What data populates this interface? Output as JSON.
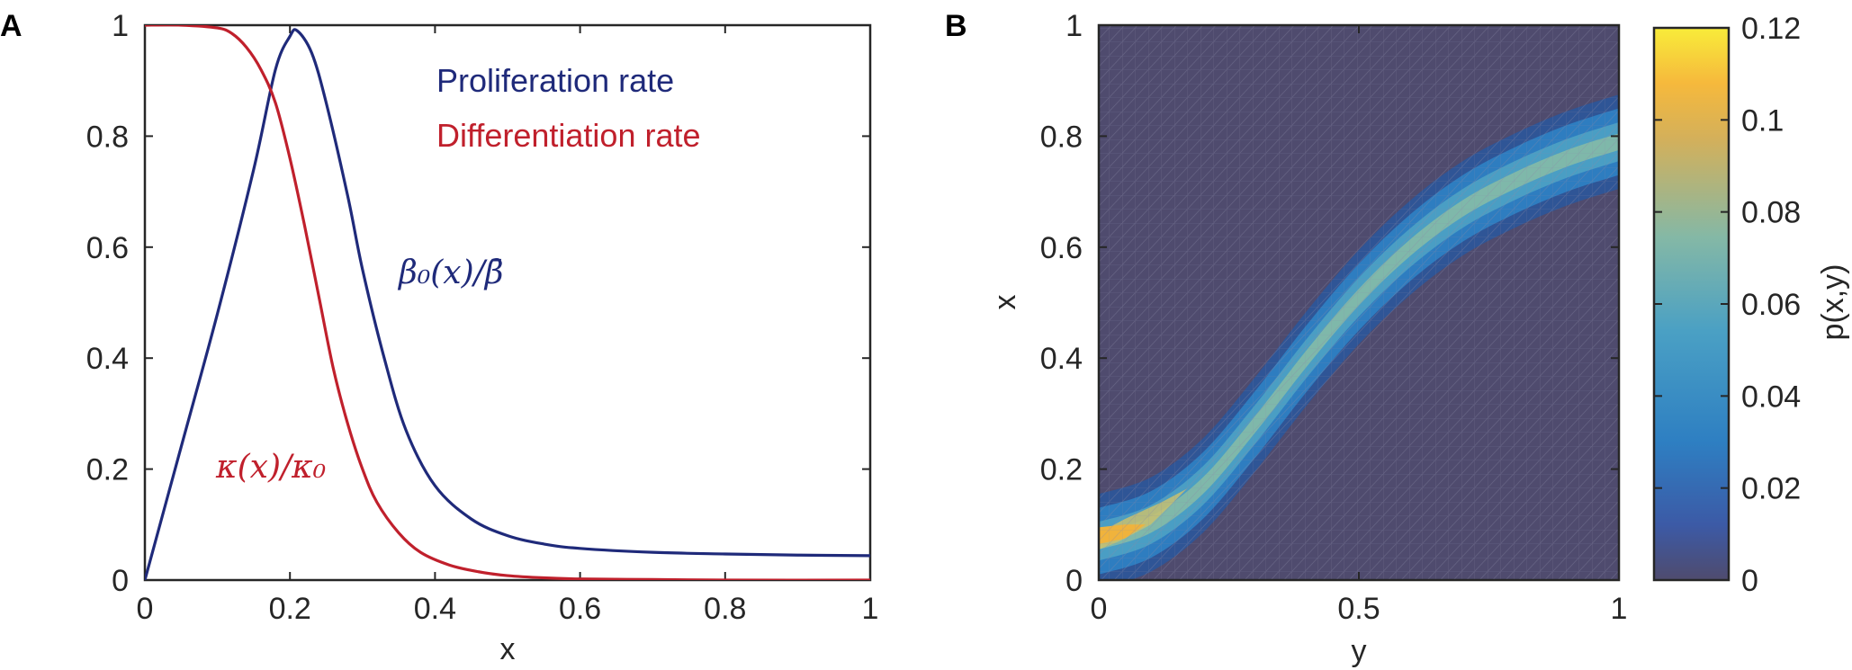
{
  "chart_data": [
    {
      "panel": "A",
      "type": "line",
      "xlabel": "x",
      "ylabel": "",
      "xlim": [
        0,
        1
      ],
      "ylim": [
        0,
        1
      ],
      "xticks": [
        "0",
        "0.2",
        "0.4",
        "0.6",
        "0.8",
        "1"
      ],
      "yticks": [
        "0",
        "0.2",
        "0.4",
        "0.6",
        "0.8",
        "1"
      ],
      "legend": [
        "Proliferation rate",
        "Differentiation rate"
      ],
      "annotations": {
        "beta": "β₀(x)/β̄",
        "kappa": "κ(x)/κ₀"
      },
      "series": [
        {
          "name": "Proliferation rate",
          "color": "#1f2a7a",
          "x": [
            0,
            0.05,
            0.1,
            0.15,
            0.18,
            0.2,
            0.21,
            0.23,
            0.25,
            0.28,
            0.3,
            0.33,
            0.36,
            0.4,
            0.45,
            0.5,
            0.55,
            0.6,
            0.7,
            0.8,
            0.9,
            1.0
          ],
          "y": [
            0,
            0.24,
            0.48,
            0.74,
            0.92,
            0.98,
            0.99,
            0.95,
            0.86,
            0.69,
            0.56,
            0.4,
            0.27,
            0.17,
            0.11,
            0.08,
            0.065,
            0.057,
            0.05,
            0.047,
            0.045,
            0.044
          ]
        },
        {
          "name": "Differentiation rate",
          "color": "#c0202c",
          "x": [
            0,
            0.05,
            0.1,
            0.12,
            0.14,
            0.16,
            0.18,
            0.2,
            0.22,
            0.24,
            0.26,
            0.28,
            0.3,
            0.32,
            0.35,
            0.38,
            0.42,
            0.46,
            0.5,
            0.55,
            0.6,
            0.7,
            0.8,
            1.0
          ],
          "y": [
            1,
            1,
            0.995,
            0.985,
            0.96,
            0.92,
            0.86,
            0.76,
            0.64,
            0.51,
            0.38,
            0.28,
            0.2,
            0.14,
            0.085,
            0.05,
            0.027,
            0.015,
            0.008,
            0.004,
            0.002,
            0.001,
            0.0,
            0.0
          ]
        }
      ]
    },
    {
      "panel": "B",
      "type": "heatmap",
      "xlabel": "y",
      "ylabel": "x",
      "xlim": [
        0,
        1
      ],
      "ylim": [
        0,
        1
      ],
      "xticks": [
        "0",
        "0.5",
        "1"
      ],
      "yticks": [
        "0",
        "0.2",
        "0.4",
        "0.6",
        "0.8",
        "1"
      ],
      "colorbar": {
        "label": "p(x,y)",
        "range": [
          0,
          0.12
        ],
        "ticks": [
          "0",
          "0.02",
          "0.04",
          "0.06",
          "0.08",
          "0.1",
          "0.12"
        ]
      },
      "ridge": {
        "y": [
          0,
          0.1,
          0.2,
          0.3,
          0.4,
          0.5,
          0.6,
          0.7,
          0.8,
          0.9,
          1.0
        ],
        "x": [
          0.07,
          0.1,
          0.17,
          0.28,
          0.4,
          0.51,
          0.6,
          0.67,
          0.72,
          0.76,
          0.79
        ]
      },
      "peak_value": 0.1
    }
  ]
}
